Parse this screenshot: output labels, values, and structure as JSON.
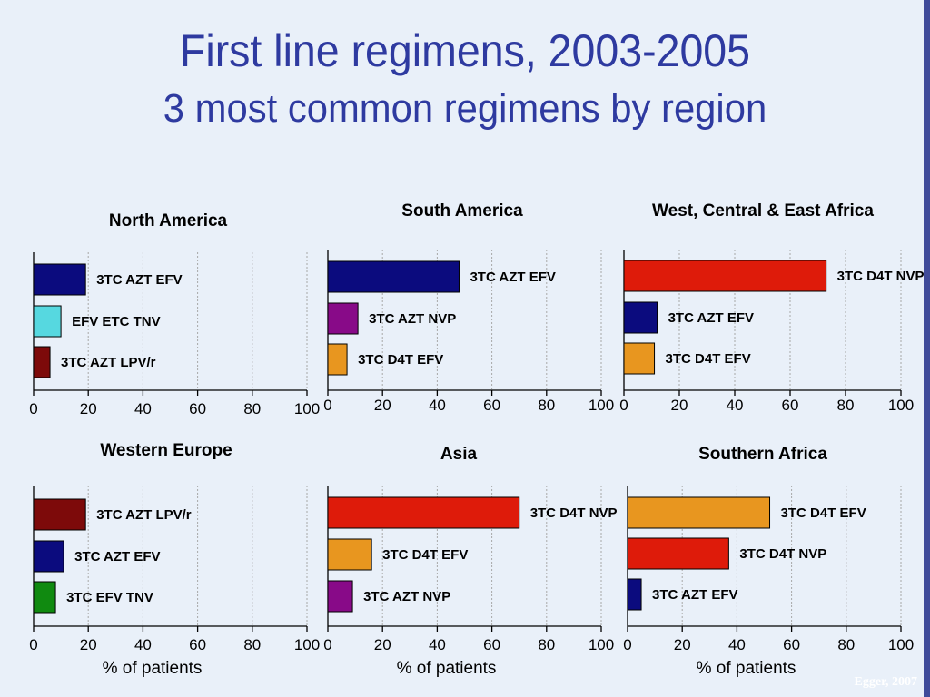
{
  "title": "First line regimens, 2003-2005",
  "subtitle": "3 most common regimens by region",
  "credit": "Egger, 2007",
  "colors": {
    "background": "#e9f0f9",
    "title": "#2e3aa0",
    "navy": "#0b0b7e",
    "cyan": "#56d8e0",
    "darkred": "#7d0a0a",
    "purple": "#880a88",
    "orange": "#e8961f",
    "red": "#de1b0a",
    "green": "#108a10"
  },
  "chart_data": [
    {
      "type": "bar",
      "orientation": "horizontal",
      "title": "North America",
      "categories": [
        "3TC AZT EFV",
        "EFV ETC TNV",
        "3TC AZT LPV/r"
      ],
      "values": [
        19,
        10,
        6
      ],
      "colors": [
        "#0b0b7e",
        "#56d8e0",
        "#7d0a0a"
      ],
      "xticks": [
        "0",
        "20",
        "40",
        "60",
        "80",
        "100"
      ],
      "xlim": [
        0,
        100
      ],
      "xlabel": "",
      "grid": "vertical dotted"
    },
    {
      "type": "bar",
      "orientation": "horizontal",
      "title": "South America",
      "categories": [
        "3TC AZT EFV",
        "3TC AZT NVP",
        "3TC D4T EFV"
      ],
      "values": [
        48,
        11,
        7
      ],
      "colors": [
        "#0b0b7e",
        "#880a88",
        "#e8961f"
      ],
      "xticks": [
        "0",
        "20",
        "40",
        "60",
        "80",
        "100"
      ],
      "xlim": [
        0,
        100
      ],
      "xlabel": "",
      "grid": "vertical dotted"
    },
    {
      "type": "bar",
      "orientation": "horizontal",
      "title": "West, Central & East Africa",
      "categories": [
        "3TC D4T NVP",
        "3TC AZT EFV",
        "3TC D4T EFV"
      ],
      "values": [
        73,
        12,
        11
      ],
      "colors": [
        "#de1b0a",
        "#0b0b7e",
        "#e8961f"
      ],
      "xticks": [
        "0",
        "20",
        "40",
        "60",
        "80",
        "100"
      ],
      "xlim": [
        0,
        100
      ],
      "xlabel": "",
      "grid": "vertical dotted"
    },
    {
      "type": "bar",
      "orientation": "horizontal",
      "title": "Western Europe",
      "categories": [
        "3TC AZT LPV/r",
        "3TC AZT EFV",
        "3TC EFV TNV"
      ],
      "values": [
        19,
        11,
        8
      ],
      "colors": [
        "#7d0a0a",
        "#0b0b7e",
        "#108a10"
      ],
      "xticks": [
        "0",
        "20",
        "40",
        "60",
        "80",
        "100"
      ],
      "xlim": [
        0,
        100
      ],
      "xlabel": "% of patients",
      "grid": "vertical dotted"
    },
    {
      "type": "bar",
      "orientation": "horizontal",
      "title": "Asia",
      "categories": [
        "3TC D4T NVP",
        "3TC D4T EFV",
        "3TC AZT NVP"
      ],
      "values": [
        70,
        16,
        9
      ],
      "colors": [
        "#de1b0a",
        "#e8961f",
        "#880a88"
      ],
      "xticks": [
        "0",
        "20",
        "40",
        "60",
        "80",
        "100"
      ],
      "xlim": [
        0,
        100
      ],
      "xlabel": "% of patients",
      "grid": "vertical dotted"
    },
    {
      "type": "bar",
      "orientation": "horizontal",
      "title": "Southern Africa",
      "categories": [
        "3TC D4T EFV",
        "3TC D4T NVP",
        "3TC AZT EFV"
      ],
      "values": [
        52,
        37,
        5
      ],
      "colors": [
        "#e8961f",
        "#de1b0a",
        "#0b0b7e"
      ],
      "xticks": [
        "0",
        "20",
        "40",
        "60",
        "80",
        "100"
      ],
      "xlim": [
        0,
        100
      ],
      "xlabel": "% of patients",
      "grid": "vertical dotted"
    }
  ]
}
